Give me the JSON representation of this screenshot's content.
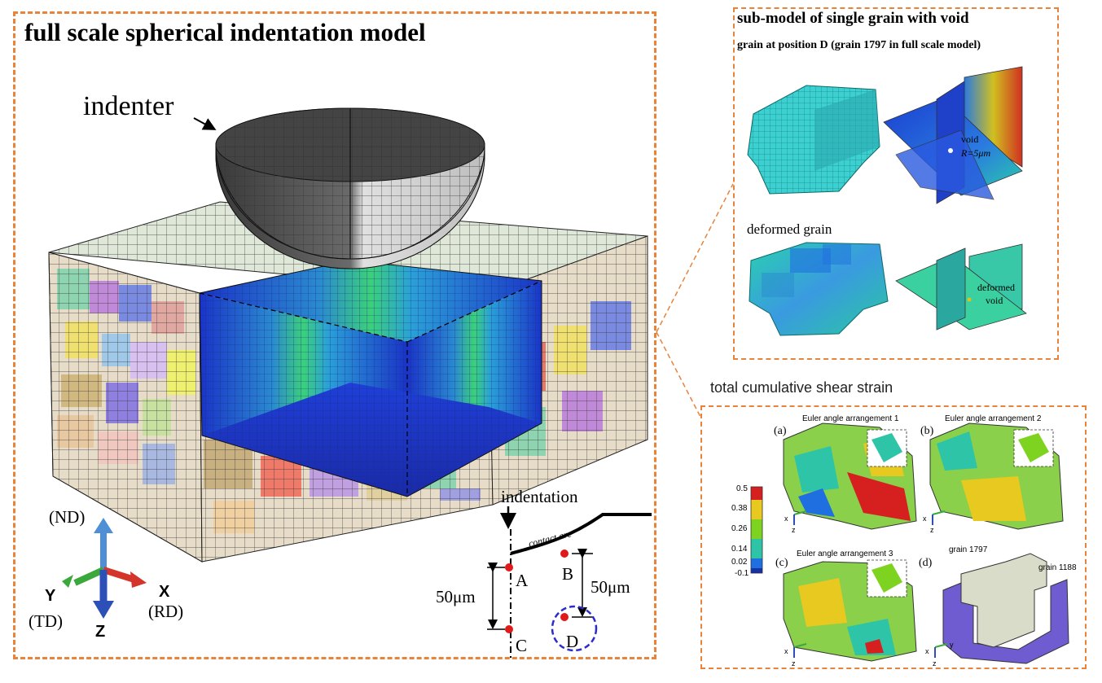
{
  "main": {
    "title": "full scale spherical indentation model",
    "indenter_label": "indenter",
    "axes": {
      "nd": "(ND)",
      "td": "(TD)",
      "rd": "(RD)",
      "y": "Y",
      "x": "X",
      "z": "Z"
    },
    "path": {
      "indentation": "indentation",
      "contact_arc": "contact arc",
      "point_a": "A",
      "point_b": "B",
      "point_c": "C",
      "point_d": "D",
      "dist_ac": "50μm",
      "dist_bd": "50μm"
    }
  },
  "sub_model": {
    "title": "sub-model of single grain with void",
    "subtitle": "grain at position D (grain 1797 in full scale model)",
    "void_label": "void",
    "radius_label": "R=5μm",
    "deformed_grain_label": "deformed grain",
    "deformed_void_label_1": "deformed",
    "deformed_void_label_2": "void"
  },
  "strain": {
    "title": "total cumulative shear strain",
    "panel_a": {
      "tag": "(a)",
      "caption": "Euler angle arrangement 1"
    },
    "panel_b": {
      "tag": "(b)",
      "caption": "Euler angle arrangement 2"
    },
    "panel_c": {
      "tag": "(c)",
      "caption": "Euler angle arrangement 3"
    },
    "panel_d": {
      "tag": "(d)",
      "grain_1797": "grain 1797",
      "grain_1188": "grain 1188"
    },
    "colorbar_ticks": [
      "0.5",
      "0.38",
      "0.26",
      "0.14",
      "0.02",
      "-0.1"
    ],
    "colorbar_colors": [
      "#d61f1f",
      "#e8c91f",
      "#7ed321",
      "#2ec4a8",
      "#1f6fe0",
      "#1630a8"
    ],
    "mini_axes": {
      "x": "x",
      "y": "y",
      "z": "z"
    }
  },
  "colors": {
    "frame": "#e8833a",
    "marker": "#e01a1a",
    "circle_d": "#2c2ccc",
    "nd_axis": "#4f8fd6",
    "td_axis": "#3aa83a",
    "rd_axis": "#d4352a",
    "z_axis": "#2c4fb8"
  }
}
